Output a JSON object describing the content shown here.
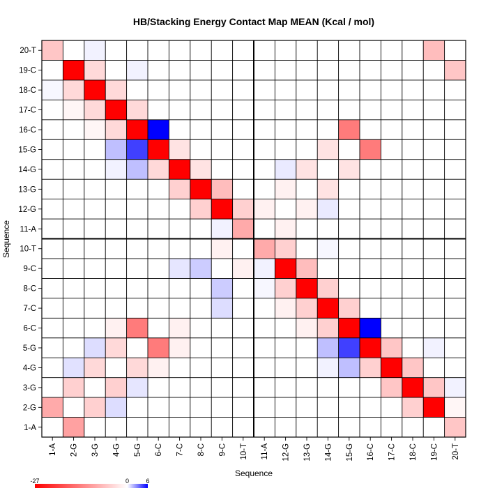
{
  "chart_data": {
    "type": "heatmap",
    "title": "HB/Stacking Energy Contact Map MEAN (Kcal / mol)",
    "xlabel": "Sequence",
    "ylabel": "Sequence",
    "categories": [
      "1-A",
      "2-G",
      "3-G",
      "4-G",
      "5-G",
      "6-C",
      "7-C",
      "8-C",
      "9-C",
      "10-T",
      "11-A",
      "12-G",
      "13-G",
      "14-G",
      "15-G",
      "16-C",
      "17-C",
      "18-C",
      "19-C",
      "20-T"
    ],
    "value_range": [
      -27,
      6
    ],
    "legend_ticks": [
      -27,
      0,
      6
    ],
    "colors": {
      "negative": "#ff0000",
      "zero": "#ffffff",
      "positive": "#0000ff",
      "grid": "#000000"
    },
    "cells": [
      {
        "x": "2-G",
        "y": "1-A",
        "v": -10
      },
      {
        "x": "20-T",
        "y": "1-A",
        "v": -6
      },
      {
        "x": "1-A",
        "y": "2-G",
        "v": -9
      },
      {
        "x": "3-G",
        "y": "2-G",
        "v": -5
      },
      {
        "x": "4-G",
        "y": "2-G",
        "v": 0.8
      },
      {
        "x": "19-C",
        "y": "2-G",
        "v": -27
      },
      {
        "x": "18-C",
        "y": "2-G",
        "v": -5
      },
      {
        "x": "20-T",
        "y": "2-G",
        "v": -1
      },
      {
        "x": "2-G",
        "y": "3-G",
        "v": -5
      },
      {
        "x": "4-G",
        "y": "3-G",
        "v": -5
      },
      {
        "x": "5-G",
        "y": "3-G",
        "v": 0.6
      },
      {
        "x": "18-C",
        "y": "3-G",
        "v": -27
      },
      {
        "x": "17-C",
        "y": "3-G",
        "v": -6
      },
      {
        "x": "19-C",
        "y": "3-G",
        "v": -6
      },
      {
        "x": "20-T",
        "y": "3-G",
        "v": 0.3
      },
      {
        "x": "2-G",
        "y": "4-G",
        "v": 0.7
      },
      {
        "x": "3-G",
        "y": "4-G",
        "v": -4
      },
      {
        "x": "5-G",
        "y": "4-G",
        "v": -4
      },
      {
        "x": "6-C",
        "y": "4-G",
        "v": -1.5
      },
      {
        "x": "17-C",
        "y": "4-G",
        "v": -27
      },
      {
        "x": "14-G",
        "y": "4-G",
        "v": 0.3
      },
      {
        "x": "15-G",
        "y": "4-G",
        "v": 1.5
      },
      {
        "x": "16-C",
        "y": "4-G",
        "v": -5
      },
      {
        "x": "18-C",
        "y": "4-G",
        "v": -6
      },
      {
        "x": "3-G",
        "y": "5-G",
        "v": 0.8
      },
      {
        "x": "4-G",
        "y": "5-G",
        "v": -4
      },
      {
        "x": "6-C",
        "y": "5-G",
        "v": -14
      },
      {
        "x": "7-C",
        "y": "5-G",
        "v": -1.5
      },
      {
        "x": "16-C",
        "y": "5-G",
        "v": -27
      },
      {
        "x": "14-G",
        "y": "5-G",
        "v": 1.5
      },
      {
        "x": "15-G",
        "y": "5-G",
        "v": 4.5
      },
      {
        "x": "17-C",
        "y": "5-G",
        "v": -6
      },
      {
        "x": "19-C",
        "y": "5-G",
        "v": 0.3
      },
      {
        "x": "4-G",
        "y": "6-C",
        "v": -1.5
      },
      {
        "x": "5-G",
        "y": "6-C",
        "v": -14
      },
      {
        "x": "7-C",
        "y": "6-C",
        "v": -1.5
      },
      {
        "x": "15-G",
        "y": "6-C",
        "v": -27
      },
      {
        "x": "14-G",
        "y": "6-C",
        "v": -5
      },
      {
        "x": "16-C",
        "y": "6-C",
        "v": 6
      },
      {
        "x": "13-G",
        "y": "6-C",
        "v": -1.5
      },
      {
        "x": "9-C",
        "y": "7-C",
        "v": 0.8
      },
      {
        "x": "14-G",
        "y": "7-C",
        "v": -27
      },
      {
        "x": "13-G",
        "y": "7-C",
        "v": -5
      },
      {
        "x": "15-G",
        "y": "7-C",
        "v": -5
      },
      {
        "x": "12-G",
        "y": "7-C",
        "v": -1.5
      },
      {
        "x": "9-C",
        "y": "8-C",
        "v": 1.2
      },
      {
        "x": "13-G",
        "y": "8-C",
        "v": -27
      },
      {
        "x": "12-G",
        "y": "8-C",
        "v": -5
      },
      {
        "x": "14-G",
        "y": "8-C",
        "v": -5
      },
      {
        "x": "11-A",
        "y": "8-C",
        "v": 0.2
      },
      {
        "x": "7-C",
        "y": "9-C",
        "v": 0.6
      },
      {
        "x": "8-C",
        "y": "9-C",
        "v": 1.2
      },
      {
        "x": "10-T",
        "y": "9-C",
        "v": -1.5
      },
      {
        "x": "12-G",
        "y": "9-C",
        "v": -27
      },
      {
        "x": "11-A",
        "y": "9-C",
        "v": 0.3
      },
      {
        "x": "13-G",
        "y": "9-C",
        "v": -7
      },
      {
        "x": "9-C",
        "y": "10-T",
        "v": -1.5
      },
      {
        "x": "11-A",
        "y": "10-T",
        "v": -9
      },
      {
        "x": "12-G",
        "y": "10-T",
        "v": -5
      },
      {
        "x": "14-G",
        "y": "10-T",
        "v": 0.2
      },
      {
        "x": "12-G",
        "y": "11-A",
        "v": -1.5
      },
      {
        "x": "10-T",
        "y": "11-A",
        "v": -9
      },
      {
        "x": "9-C",
        "y": "11-A",
        "v": 0.3
      },
      {
        "x": "9-C",
        "y": "12-G",
        "v": -27
      },
      {
        "x": "8-C",
        "y": "12-G",
        "v": -5
      },
      {
        "x": "10-T",
        "y": "12-G",
        "v": -5
      },
      {
        "x": "11-A",
        "y": "12-G",
        "v": -1.5
      },
      {
        "x": "13-G",
        "y": "12-G",
        "v": -1.5
      },
      {
        "x": "14-G",
        "y": "12-G",
        "v": 0.5
      },
      {
        "x": "8-C",
        "y": "13-G",
        "v": -27
      },
      {
        "x": "7-C",
        "y": "13-G",
        "v": -5
      },
      {
        "x": "9-C",
        "y": "13-G",
        "v": -7
      },
      {
        "x": "14-G",
        "y": "13-G",
        "v": -3
      },
      {
        "x": "12-G",
        "y": "13-G",
        "v": -1.5
      },
      {
        "x": "7-C",
        "y": "14-G",
        "v": -27
      },
      {
        "x": "6-C",
        "y": "14-G",
        "v": -4
      },
      {
        "x": "8-C",
        "y": "14-G",
        "v": -3
      },
      {
        "x": "4-G",
        "y": "14-G",
        "v": 0.3
      },
      {
        "x": "5-G",
        "y": "14-G",
        "v": 1.5
      },
      {
        "x": "13-G",
        "y": "14-G",
        "v": -3
      },
      {
        "x": "15-G",
        "y": "14-G",
        "v": -3
      },
      {
        "x": "12-G",
        "y": "14-G",
        "v": 0.5
      },
      {
        "x": "6-C",
        "y": "15-G",
        "v": -27
      },
      {
        "x": "5-G",
        "y": "15-G",
        "v": 4.5
      },
      {
        "x": "4-G",
        "y": "15-G",
        "v": 1.5
      },
      {
        "x": "7-C",
        "y": "15-G",
        "v": -3
      },
      {
        "x": "16-C",
        "y": "15-G",
        "v": -14
      },
      {
        "x": "14-G",
        "y": "15-G",
        "v": -3
      },
      {
        "x": "5-G",
        "y": "16-C",
        "v": -27
      },
      {
        "x": "6-C",
        "y": "16-C",
        "v": 6
      },
      {
        "x": "4-G",
        "y": "16-C",
        "v": -4
      },
      {
        "x": "15-G",
        "y": "16-C",
        "v": -14
      },
      {
        "x": "3-G",
        "y": "16-C",
        "v": -1
      },
      {
        "x": "4-G",
        "y": "17-C",
        "v": -27
      },
      {
        "x": "3-G",
        "y": "17-C",
        "v": -4
      },
      {
        "x": "5-G",
        "y": "17-C",
        "v": -4
      },
      {
        "x": "2-G",
        "y": "17-C",
        "v": -1
      },
      {
        "x": "3-G",
        "y": "18-C",
        "v": -27
      },
      {
        "x": "2-G",
        "y": "18-C",
        "v": -4
      },
      {
        "x": "4-G",
        "y": "18-C",
        "v": -4
      },
      {
        "x": "1-A",
        "y": "18-C",
        "v": 0.2
      },
      {
        "x": "2-G",
        "y": "19-C",
        "v": -27
      },
      {
        "x": "3-G",
        "y": "19-C",
        "v": -4
      },
      {
        "x": "20-T",
        "y": "19-C",
        "v": -6
      },
      {
        "x": "5-G",
        "y": "19-C",
        "v": 0.3
      },
      {
        "x": "1-A",
        "y": "20-T",
        "v": -6
      },
      {
        "x": "19-C",
        "y": "20-T",
        "v": -7
      },
      {
        "x": "3-G",
        "y": "20-T",
        "v": 0.3
      }
    ]
  }
}
